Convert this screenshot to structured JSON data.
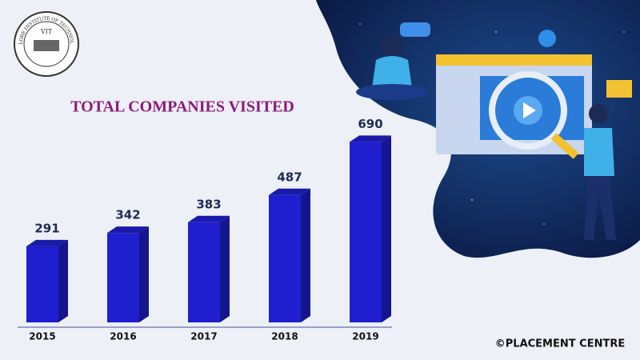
{
  "logo": {
    "name": "VELLORE INSTITUTE OF TECHNOLOGY",
    "abbr": "VIT"
  },
  "chart_data": {
    "type": "bar",
    "title": "TOTAL COMPANIES VISITED",
    "categories": [
      "2015",
      "2016",
      "2017",
      "2018",
      "2019"
    ],
    "values": [
      291,
      342,
      383,
      487,
      690
    ],
    "color": "#1f1fd0"
  },
  "footer": "©PLACEMENT CENTRE"
}
